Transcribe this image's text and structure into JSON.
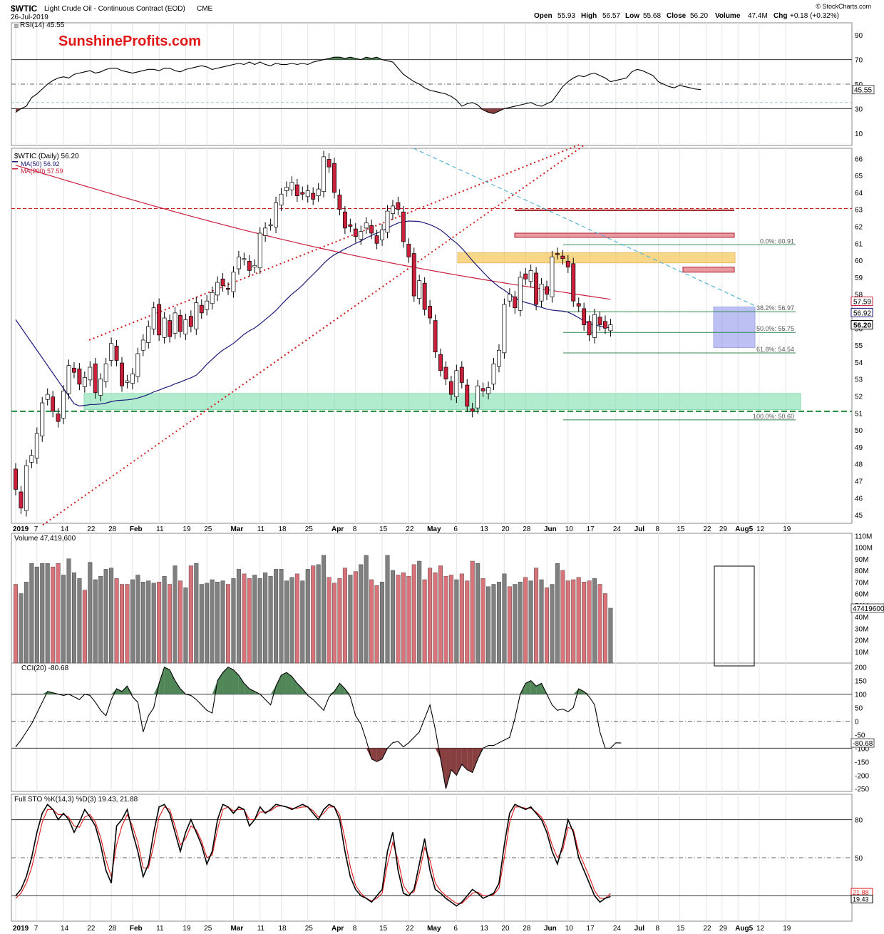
{
  "header": {
    "symbol": "$WTIC",
    "name": "Light Crude Oil - Continuous Contract (EOD)",
    "exchange": "CME",
    "date": "26-Jul-2019",
    "credit": "© StockCharts.com",
    "quote": {
      "open_label": "Open",
      "open": "55.93",
      "high_label": "High",
      "high": "56.57",
      "low_label": "Low",
      "low": "55.68",
      "close_label": "Close",
      "close": "56.20",
      "volume_label": "Volume",
      "volume": "47.4M",
      "chg_label": "Chg",
      "chg": "+0.18 (+0.32%)"
    }
  },
  "watermark": "SunshineProfits.com",
  "colors": {
    "up_candle": "#ffffff",
    "down_candle": "#cc1f3c",
    "ma50": "#1a1a7a",
    "ma200": "#c8203c",
    "support_zone": "#7fe0b0",
    "resistance_zone": "#f5c34a",
    "consolidation_box": "#6f76e6",
    "fib_line": "#2e8a4a",
    "trend_dotted": "#d01818",
    "downtrend_dashed": "#55b4d6",
    "oscillator_fill_green": "#3e7a46",
    "oscillator_fill_red": "#7a2a2a",
    "sto_k": "#000000",
    "sto_d": "#e01818",
    "volume_up": "#808080",
    "volume_down": "#d9737a"
  },
  "chart_data": [
    {
      "type": "line",
      "panel": "RSI",
      "title": "RSI(14) 45.55",
      "ylim": [
        0,
        100
      ],
      "yticks": [
        10,
        30,
        50,
        70,
        90
      ],
      "levels": [
        70,
        50,
        30
      ],
      "last_value": "45.55",
      "values": [
        27,
        30,
        32,
        39,
        42,
        46,
        50,
        53,
        55,
        56,
        55,
        58,
        59,
        60,
        61,
        59,
        60,
        62,
        63,
        63,
        61,
        60,
        59,
        60,
        61,
        62,
        62,
        61,
        63,
        63,
        61,
        60,
        62,
        63,
        64,
        65,
        64,
        62,
        63,
        64,
        65,
        66,
        67,
        66,
        68,
        66,
        68,
        66,
        65,
        67,
        66,
        66,
        67,
        66,
        67,
        66,
        68,
        69,
        70,
        71,
        72,
        72,
        71,
        72,
        71,
        70,
        72,
        71,
        72,
        70,
        69,
        68,
        63,
        58,
        55,
        52,
        50,
        47,
        45,
        44,
        43,
        42,
        40,
        37,
        32,
        34,
        35,
        33,
        29,
        27,
        26,
        28,
        30,
        31,
        32,
        33,
        34,
        35,
        33,
        32,
        34,
        36,
        42,
        48,
        52,
        55,
        57,
        56,
        58,
        59,
        57,
        55,
        52,
        53,
        54,
        55,
        60,
        62,
        61,
        59,
        57,
        52,
        50,
        48,
        47,
        49,
        48,
        47,
        46,
        45.55
      ]
    },
    {
      "type": "candlestick",
      "panel": "Price",
      "title": "$WTIC (Daily) 56.20",
      "legend": [
        {
          "name": "$WTIC (Daily) 56.20"
        },
        {
          "name": "MA(50) 56.92"
        },
        {
          "name": "MA(200) 57.59"
        }
      ],
      "ylim": [
        44,
        67
      ],
      "yticks": [
        45,
        46,
        47,
        48,
        49,
        50,
        51,
        52,
        53,
        54,
        55,
        56,
        57,
        58,
        59,
        60,
        61,
        62,
        63,
        64,
        65,
        66
      ],
      "x_labels": [
        "2019",
        "7",
        "14",
        "22",
        "28",
        "Feb",
        "11",
        "19",
        "25",
        "Mar",
        "11",
        "18",
        "25",
        "Apr",
        "8",
        "15",
        "22",
        "May",
        "6",
        "13",
        "20",
        "28",
        "Jun",
        "10",
        "17",
        "24",
        "Jul",
        "8",
        "15",
        "22",
        "29",
        "Aug5",
        "12",
        "19"
      ],
      "close": [
        46.5,
        45.4,
        47.9,
        48.5,
        49.8,
        51.6,
        52.1,
        51.1,
        50.5,
        52.3,
        53.8,
        53.4,
        52.7,
        53.1,
        53.7,
        52.2,
        53.0,
        53.9,
        55.1,
        54.1,
        52.6,
        52.9,
        53.3,
        54.5,
        55.3,
        56.1,
        57.2,
        55.6,
        56.6,
        55.5,
        56.9,
        55.8,
        56.5,
        56.1,
        57.5,
        56.9,
        57.6,
        58.1,
        58.7,
        58.5,
        58.3,
        59.3,
        60.2,
        60.1,
        59.4,
        59.7,
        61.6,
        61.9,
        62.1,
        63.4,
        63.9,
        64.3,
        64.6,
        63.8,
        63.9,
        64.1,
        63.6,
        64.2,
        66.1,
        65.5,
        64.0,
        63.0,
        61.9,
        62.0,
        61.4,
        61.7,
        62.2,
        61.6,
        61.0,
        61.8,
        62.9,
        63.2,
        63.0,
        61.1,
        60.2,
        57.9,
        58.8,
        57.1,
        56.6,
        54.6,
        53.5,
        53.0,
        52.1,
        53.5,
        52.8,
        51.4,
        51.1,
        52.6,
        52.3,
        52.5,
        53.9,
        54.7,
        57.4,
        58.0,
        57.2,
        59.0,
        58.9,
        59.4,
        57.4,
        58.6,
        58.0,
        60.2,
        60.4,
        60.1,
        59.6,
        57.6,
        57.3,
        56.2,
        55.6,
        56.8,
        56.2,
        56.0,
        56.2
      ]
    },
    {
      "type": "bar",
      "panel": "Volume",
      "title": "Volume 47,419,600",
      "ylim": [
        0,
        110000000
      ],
      "yticks": [
        "10M",
        "20M",
        "30M",
        "40M",
        "50M",
        "60M",
        "70M",
        "80M",
        "90M",
        "100M",
        "110M"
      ],
      "last_value": "47419600",
      "values_millions": [
        68,
        60,
        70,
        86,
        83,
        86,
        86,
        83,
        86,
        76,
        90,
        78,
        73,
        63,
        87,
        72,
        75,
        81,
        82,
        73,
        68,
        68,
        72,
        76,
        70,
        71,
        69,
        70,
        75,
        68,
        84,
        71,
        65,
        84,
        86,
        68,
        69,
        72,
        70,
        71,
        68,
        73,
        81,
        77,
        73,
        76,
        73,
        78,
        75,
        81,
        81,
        71,
        74,
        77,
        71,
        81,
        84,
        85,
        93,
        74,
        69,
        73,
        82,
        76,
        79,
        85,
        93,
        72,
        67,
        70,
        93,
        80,
        76,
        78,
        75,
        85,
        88,
        72,
        82,
        78,
        84,
        75,
        76,
        72,
        77,
        71,
        88,
        86,
        73,
        66,
        68,
        70,
        77,
        66,
        68,
        70,
        74,
        71,
        82,
        72,
        65,
        68,
        86,
        80,
        71,
        72,
        74,
        70,
        71,
        73,
        68,
        60,
        47.4
      ],
      "down_flags": [
        1,
        0,
        0,
        0,
        0,
        0,
        0,
        1,
        1,
        0,
        0,
        0,
        0,
        1,
        0,
        0,
        0,
        0,
        0,
        1,
        1,
        1,
        0,
        0,
        0,
        0,
        0,
        1,
        0,
        1,
        0,
        1,
        0,
        1,
        0,
        0,
        0,
        0,
        0,
        0,
        1,
        0,
        0,
        1,
        1,
        0,
        0,
        0,
        0,
        0,
        0,
        0,
        0,
        1,
        0,
        0,
        1,
        0,
        0,
        1,
        1,
        1,
        1,
        0,
        1,
        0,
        0,
        1,
        1,
        0,
        0,
        0,
        1,
        1,
        1,
        1,
        0,
        1,
        1,
        1,
        1,
        1,
        1,
        0,
        1,
        1,
        1,
        0,
        1,
        0,
        0,
        0,
        0,
        1,
        0,
        0,
        1,
        0,
        1,
        0,
        1,
        0,
        0,
        1,
        1,
        1,
        1,
        1,
        1,
        0,
        1,
        1,
        0
      ]
    },
    {
      "type": "area",
      "panel": "CCI",
      "title": "CCI(20) -80.68",
      "ylim": [
        -250,
        200
      ],
      "yticks": [
        -250,
        -200,
        -150,
        -100,
        -50,
        0,
        50,
        100,
        150,
        200
      ],
      "levels": [
        100,
        -100
      ],
      "last_value": "-80.68",
      "values": [
        -95,
        -70,
        -40,
        -10,
        30,
        70,
        110,
        105,
        100,
        95,
        100,
        90,
        80,
        100,
        95,
        70,
        40,
        20,
        80,
        120,
        110,
        130,
        90,
        70,
        -40,
        20,
        50,
        140,
        200,
        190,
        150,
        120,
        100,
        95,
        80,
        60,
        40,
        30,
        150,
        180,
        200,
        190,
        170,
        140,
        120,
        110,
        100,
        80,
        60,
        130,
        170,
        180,
        165,
        140,
        120,
        95,
        80,
        60,
        40,
        90,
        110,
        140,
        120,
        90,
        20,
        -10,
        -70,
        -140,
        -150,
        -140,
        -100,
        -80,
        -75,
        -95,
        -80,
        -60,
        -40,
        10,
        60,
        -30,
        -140,
        -250,
        -180,
        -200,
        -160,
        -180,
        -190,
        -140,
        -100,
        -90,
        -90,
        -80,
        -70,
        -60,
        10,
        100,
        140,
        150,
        130,
        140,
        100,
        60,
        40,
        45,
        35,
        50,
        120,
        110,
        90,
        60,
        -40,
        -100,
        -100,
        -80,
        -80.68
      ]
    },
    {
      "type": "line",
      "panel": "Stochastic",
      "title": "Full STO %K(14,3) %D(3) 19.43, 21.88",
      "ylim": [
        0,
        100
      ],
      "yticks": [
        20,
        50,
        80
      ],
      "levels": [
        80,
        50,
        20
      ],
      "series": [
        {
          "name": "%K(14,3)",
          "last_value": "19.43",
          "values": [
            20,
            25,
            35,
            50,
            70,
            85,
            92,
            88,
            80,
            85,
            80,
            70,
            78,
            88,
            82,
            75,
            60,
            40,
            30,
            75,
            80,
            88,
            70,
            55,
            35,
            45,
            70,
            90,
            92,
            85,
            70,
            55,
            70,
            80,
            70,
            60,
            45,
            55,
            80,
            92,
            90,
            85,
            90,
            88,
            75,
            80,
            90,
            85,
            88,
            92,
            91,
            90,
            88,
            90,
            92,
            90,
            85,
            80,
            88,
            92,
            90,
            80,
            55,
            35,
            25,
            20,
            18,
            15,
            20,
            25,
            55,
            70,
            40,
            22,
            20,
            25,
            45,
            65,
            40,
            25,
            22,
            18,
            15,
            12,
            15,
            20,
            25,
            22,
            18,
            20,
            22,
            30,
            60,
            85,
            92,
            90,
            88,
            90,
            85,
            80,
            70,
            55,
            45,
            60,
            80,
            70,
            50,
            40,
            30,
            20,
            15,
            18,
            19.43
          ]
        },
        {
          "name": "%D(3)",
          "last_value": "21.88",
          "values": [
            18,
            22,
            30,
            42,
            60,
            78,
            88,
            88,
            84,
            84,
            82,
            75,
            74,
            82,
            84,
            78,
            66,
            48,
            35,
            60,
            75,
            84,
            75,
            62,
            42,
            42,
            60,
            82,
            90,
            88,
            75,
            60,
            65,
            75,
            72,
            63,
            50,
            52,
            72,
            88,
            90,
            87,
            88,
            88,
            80,
            80,
            86,
            86,
            87,
            90,
            91,
            90,
            89,
            89,
            90,
            90,
            87,
            82,
            85,
            90,
            90,
            84,
            65,
            43,
            28,
            22,
            18,
            16,
            18,
            22,
            45,
            62,
            48,
            28,
            22,
            23,
            38,
            58,
            48,
            30,
            24,
            20,
            17,
            14,
            14,
            18,
            22,
            23,
            20,
            20,
            21,
            26,
            50,
            78,
            90,
            90,
            89,
            89,
            86,
            82,
            74,
            60,
            50,
            56,
            74,
            72,
            55,
            45,
            35,
            24,
            18,
            18,
            21.88
          ]
        }
      ]
    }
  ],
  "annotations": {
    "fib_levels": [
      {
        "label": "0.0%: 60.91",
        "value": 60.91
      },
      {
        "label": "38.2%: 56.97",
        "value": 56.97
      },
      {
        "label": "50.0%: 55.75",
        "value": 55.75
      },
      {
        "label": "61.8%: 54.54",
        "value": 54.54
      },
      {
        "label": "100.0%: 50.60",
        "value": 50.6
      }
    ],
    "price_tags": {
      "ma200": "57.59",
      "ma50": "56.92",
      "close": "56.20"
    },
    "volume_tag": "47419600",
    "cci_tag": "-80.68",
    "rsi_tag": "45.55",
    "sto_tags": [
      "21.88",
      "19.43"
    ]
  }
}
